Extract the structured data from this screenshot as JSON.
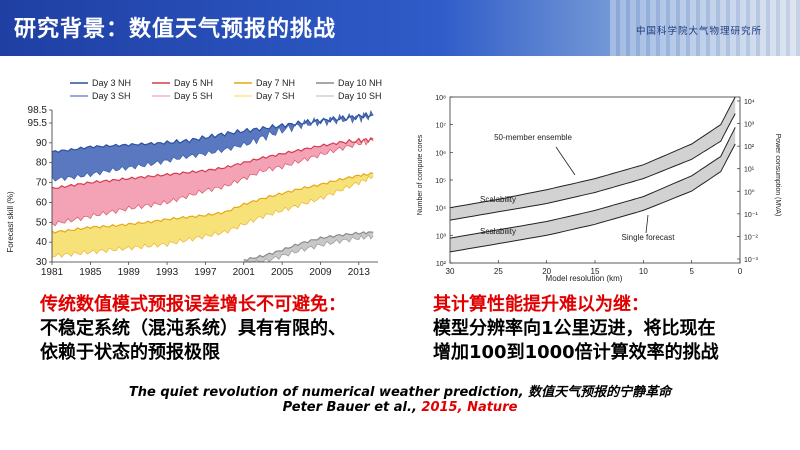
{
  "header": {
    "title": "研究背景：数值天气预报的挑战",
    "institution": "中国科学院大气物理研究所"
  },
  "left_text": {
    "heading": "传统数值模式预报误差增长不可避免：",
    "line1": "不稳定系统（混沌系统）具有有限的、",
    "line2": "依赖于状态的预报极限"
  },
  "right_text": {
    "heading": "其计算性能提升难以为继：",
    "line1": "模型分辨率向1公里迈进，将比现在",
    "line2": "增加100到1000倍计算效率的挑战"
  },
  "citation": {
    "line1": "The quiet revolution of numerical weather prediction, 数值天气预报的宁静革命",
    "authors": "Peter Bauer et al., ",
    "year_journal": "2015, Nature"
  },
  "colors": {
    "day3": "#2c4f9e",
    "day3_fill": "#5a78c0",
    "day5": "#d63a4f",
    "day5_fill": "#f3a3b5",
    "day7": "#e6a817",
    "day7_fill": "#f7e27a",
    "day10": "#8a8a8a",
    "day10_fill": "#c8c8c8",
    "red": "#e00000"
  },
  "chart_data": [
    {
      "type": "area",
      "title": "",
      "ylabel": "Forecast skill (%)",
      "xlabel": "",
      "xlim": [
        1981,
        2015
      ],
      "ylim": [
        30,
        98.5
      ],
      "x_ticks": [
        "1981",
        "1985",
        "1989",
        "1993",
        "1997",
        "2001",
        "2005",
        "2009",
        "2013"
      ],
      "y_ticks": [
        "98.5",
        "95.5",
        "90",
        "80",
        "70",
        "60",
        "50",
        "40",
        "30"
      ],
      "legend_position": "top",
      "legend": [
        "Day 3 NH",
        "Day 5 NH",
        "Day 7 NH",
        "Day 10 NH",
        "Day 3 SH",
        "Day 5 SH",
        "Day 7 SH",
        "Day 10 SH"
      ],
      "x": [
        1981,
        1983,
        1985,
        1987,
        1989,
        1991,
        1993,
        1995,
        1997,
        1999,
        2001,
        2003,
        2005,
        2007,
        2009,
        2011,
        2013,
        2014.5
      ],
      "series": [
        {
          "name": "Day 3 NH",
          "values": [
            85.5,
            86.5,
            88,
            88.5,
            89,
            89.5,
            90,
            90.5,
            91.5,
            92.5,
            93.3,
            94,
            94.8,
            95.5,
            96,
            96.5,
            97,
            97.4
          ]
        },
        {
          "name": "Day 3 SH",
          "values": [
            71.5,
            72.5,
            74,
            76,
            77.5,
            79,
            81,
            83,
            84.5,
            86.5,
            89,
            91.5,
            93.5,
            95,
            95.8,
            96.3,
            96.8,
            97.2
          ]
        },
        {
          "name": "Day 5 NH",
          "values": [
            67,
            68.5,
            70,
            71,
            72,
            73,
            74,
            75,
            76,
            77.5,
            80,
            82.5,
            84.5,
            86.5,
            88.5,
            90,
            90.6,
            91
          ]
        },
        {
          "name": "Day 5 SH",
          "values": [
            49,
            51,
            53,
            55,
            57,
            58.5,
            60,
            63,
            66,
            68,
            72,
            76,
            78,
            81,
            84,
            87,
            89.5,
            90.5
          ]
        },
        {
          "name": "Day 7 NH",
          "values": [
            45,
            46,
            47.5,
            48,
            49,
            50,
            51.5,
            52.5,
            53.5,
            55,
            59,
            62,
            64.5,
            67,
            69,
            71.5,
            73.5,
            74.5
          ]
        },
        {
          "name": "Day 7 SH",
          "values": [
            33,
            34,
            35,
            36,
            37,
            38,
            39,
            41,
            43,
            45,
            49,
            53,
            56,
            59,
            62,
            66,
            70,
            73
          ]
        },
        {
          "name": "Day 10 NH",
          "values": [
            null,
            null,
            null,
            null,
            null,
            null,
            null,
            null,
            null,
            null,
            31,
            33,
            36,
            39.5,
            42,
            43.5,
            44.5,
            45
          ]
        },
        {
          "name": "Day 10 SH",
          "values": [
            null,
            null,
            null,
            null,
            null,
            null,
            null,
            null,
            null,
            null,
            29,
            30,
            33,
            36,
            38.5,
            40.5,
            42,
            43
          ]
        }
      ]
    },
    {
      "type": "line",
      "title": "",
      "xlabel": "Model resolution (km)",
      "ylabel": "Number of compute cores",
      "y2label": "Power consumption (MVA)",
      "xlim": [
        30,
        0
      ],
      "x_ticks": [
        "30",
        "25",
        "20",
        "15",
        "10",
        "5",
        "0"
      ],
      "ylim_log10": [
        2,
        8
      ],
      "y_ticks": [
        "10²",
        "10³",
        "10⁴",
        "10⁵",
        "10⁶",
        "10⁷",
        "10⁸"
      ],
      "y2_ticks": [
        "10⁴",
        "10³",
        "10²",
        "10¹",
        "10⁰",
        "10⁻¹",
        "10⁻²",
        "10⁻³"
      ],
      "annotations": [
        "50-member ensemble",
        "Scalability",
        "Scalability",
        "Single forecast"
      ],
      "x": [
        30,
        25,
        20,
        15,
        10,
        5,
        2,
        0.5
      ],
      "series": [
        {
          "name": "50-member ensemble (upper)",
          "values_log10": [
            4.0,
            4.3,
            4.65,
            5.05,
            5.55,
            6.3,
            7.0,
            8.0
          ]
        },
        {
          "name": "50-member ensemble (lower)",
          "values_log10": [
            3.55,
            3.85,
            4.15,
            4.55,
            5.05,
            5.75,
            6.4,
            7.4
          ]
        },
        {
          "name": "Single forecast (upper)",
          "values_log10": [
            2.9,
            3.2,
            3.5,
            3.9,
            4.4,
            5.15,
            5.85,
            6.9
          ]
        },
        {
          "name": "Single forecast (lower)",
          "values_log10": [
            2.4,
            2.7,
            3.0,
            3.4,
            3.9,
            4.6,
            5.3,
            6.3
          ]
        }
      ]
    }
  ]
}
